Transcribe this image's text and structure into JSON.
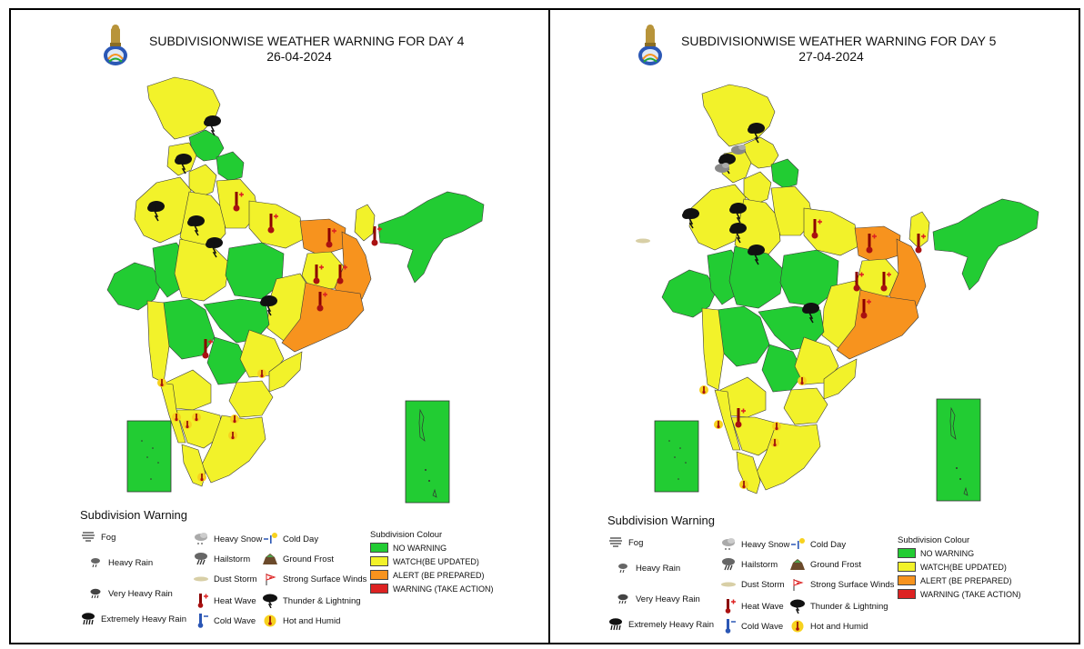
{
  "panels": [
    {
      "title_line1": "SUBDIVISIONWISE WEATHER WARNING FOR DAY 4",
      "title_line2": "26-04-2024"
    },
    {
      "title_line1": "SUBDIVISIONWISE WEATHER WARNING FOR DAY 5",
      "title_line2": "27-04-2024"
    }
  ],
  "legend": {
    "title": "Subdivision Warning",
    "items": {
      "fog": "Fog",
      "heavy_rain": "Heavy Rain",
      "very_heavy_rain": "Very Heavy Rain",
      "extremely_heavy_rain": "Extremely Heavy Rain",
      "heavy_snow": "Heavy Snow",
      "hailstorm": "Hailstorm",
      "dust_storm": "Dust Storm",
      "heat_wave": "Heat Wave",
      "cold_wave": "Cold Wave",
      "cold_day": "Cold Day",
      "ground_frost": "Ground Frost",
      "strong_surface_winds": "Strong Surface Winds",
      "thunder_lightning": "Thunder & Lightning",
      "hot_humid": "Hot and Humid"
    },
    "colour_title": "Subdivision Colour",
    "colours": [
      {
        "label": "NO WARNING",
        "color": "#22cc33"
      },
      {
        "label": "WATCH(BE UPDATED)",
        "color": "#f2f22a"
      },
      {
        "label": "ALERT (BE PREPARED)",
        "color": "#f7931e"
      },
      {
        "label": "WARNING (TAKE ACTION)",
        "color": "#dd2222"
      }
    ]
  },
  "colors": {
    "no_warning": "#22cc33",
    "watch": "#f2f22a",
    "alert": "#f7931e",
    "warning": "#dd2222",
    "emblem_blue": "#2b57b5"
  }
}
